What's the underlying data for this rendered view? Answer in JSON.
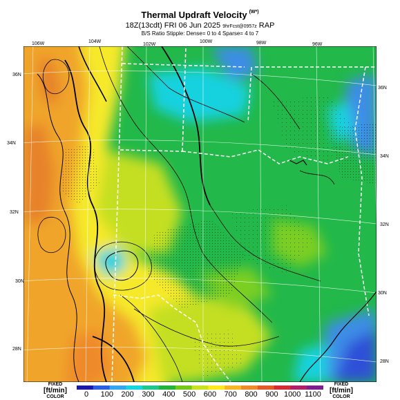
{
  "header": {
    "title": "Thermal Updraft Velocity",
    "title_sup": "(W*)",
    "subtitle": "18Z(13cdt) FRI 06 Jun 2025",
    "subtitle_small": "9hrFcst@0957z",
    "model": "RAP",
    "stipple_note": "B/S Ratio Stipple: Dense= 0 to 4 Sparse= 4 to 7"
  },
  "axes": {
    "lon_labels": [
      "106W",
      "104W",
      "102W",
      "100W",
      "98W",
      "96W"
    ],
    "lat_labels_left": [
      "36N",
      "34N",
      "32N",
      "30N",
      "28N"
    ],
    "lat_labels_right": [
      "36N",
      "34N",
      "32N",
      "30N",
      "28N"
    ]
  },
  "colorbar": {
    "unit_left_top": "FIXED",
    "unit_left": "[ft/min]",
    "unit_left_bottom": "COLOR",
    "unit_right_top": "FIXED",
    "unit_right": "[ft/min]",
    "unit_right_bottom": "COLOR",
    "labels": [
      "0",
      "100",
      "200",
      "300",
      "400",
      "500",
      "600",
      "700",
      "800",
      "900",
      "1000",
      "1100"
    ],
    "colors": [
      "#1a1aa6",
      "#2b5fe0",
      "#33a6ee",
      "#18d4dc",
      "#1fc88a",
      "#22b43a",
      "#74c918",
      "#c8e21c",
      "#ffe81e",
      "#f7b624",
      "#ef8a2a",
      "#e05c2a",
      "#d42b37",
      "#b01f6a",
      "#7e1f8e"
    ]
  },
  "map": {
    "colors": {
      "deep_blue": "#2f4fd8",
      "blue": "#3c8de6",
      "cyan": "#19d2df",
      "green": "#1fbf4a",
      "light_green": "#6fcf2a",
      "yellow_green": "#c4df23",
      "yellow": "#f6e92a",
      "orange": "#f0a52c",
      "dark_orange": "#e7822c"
    }
  }
}
